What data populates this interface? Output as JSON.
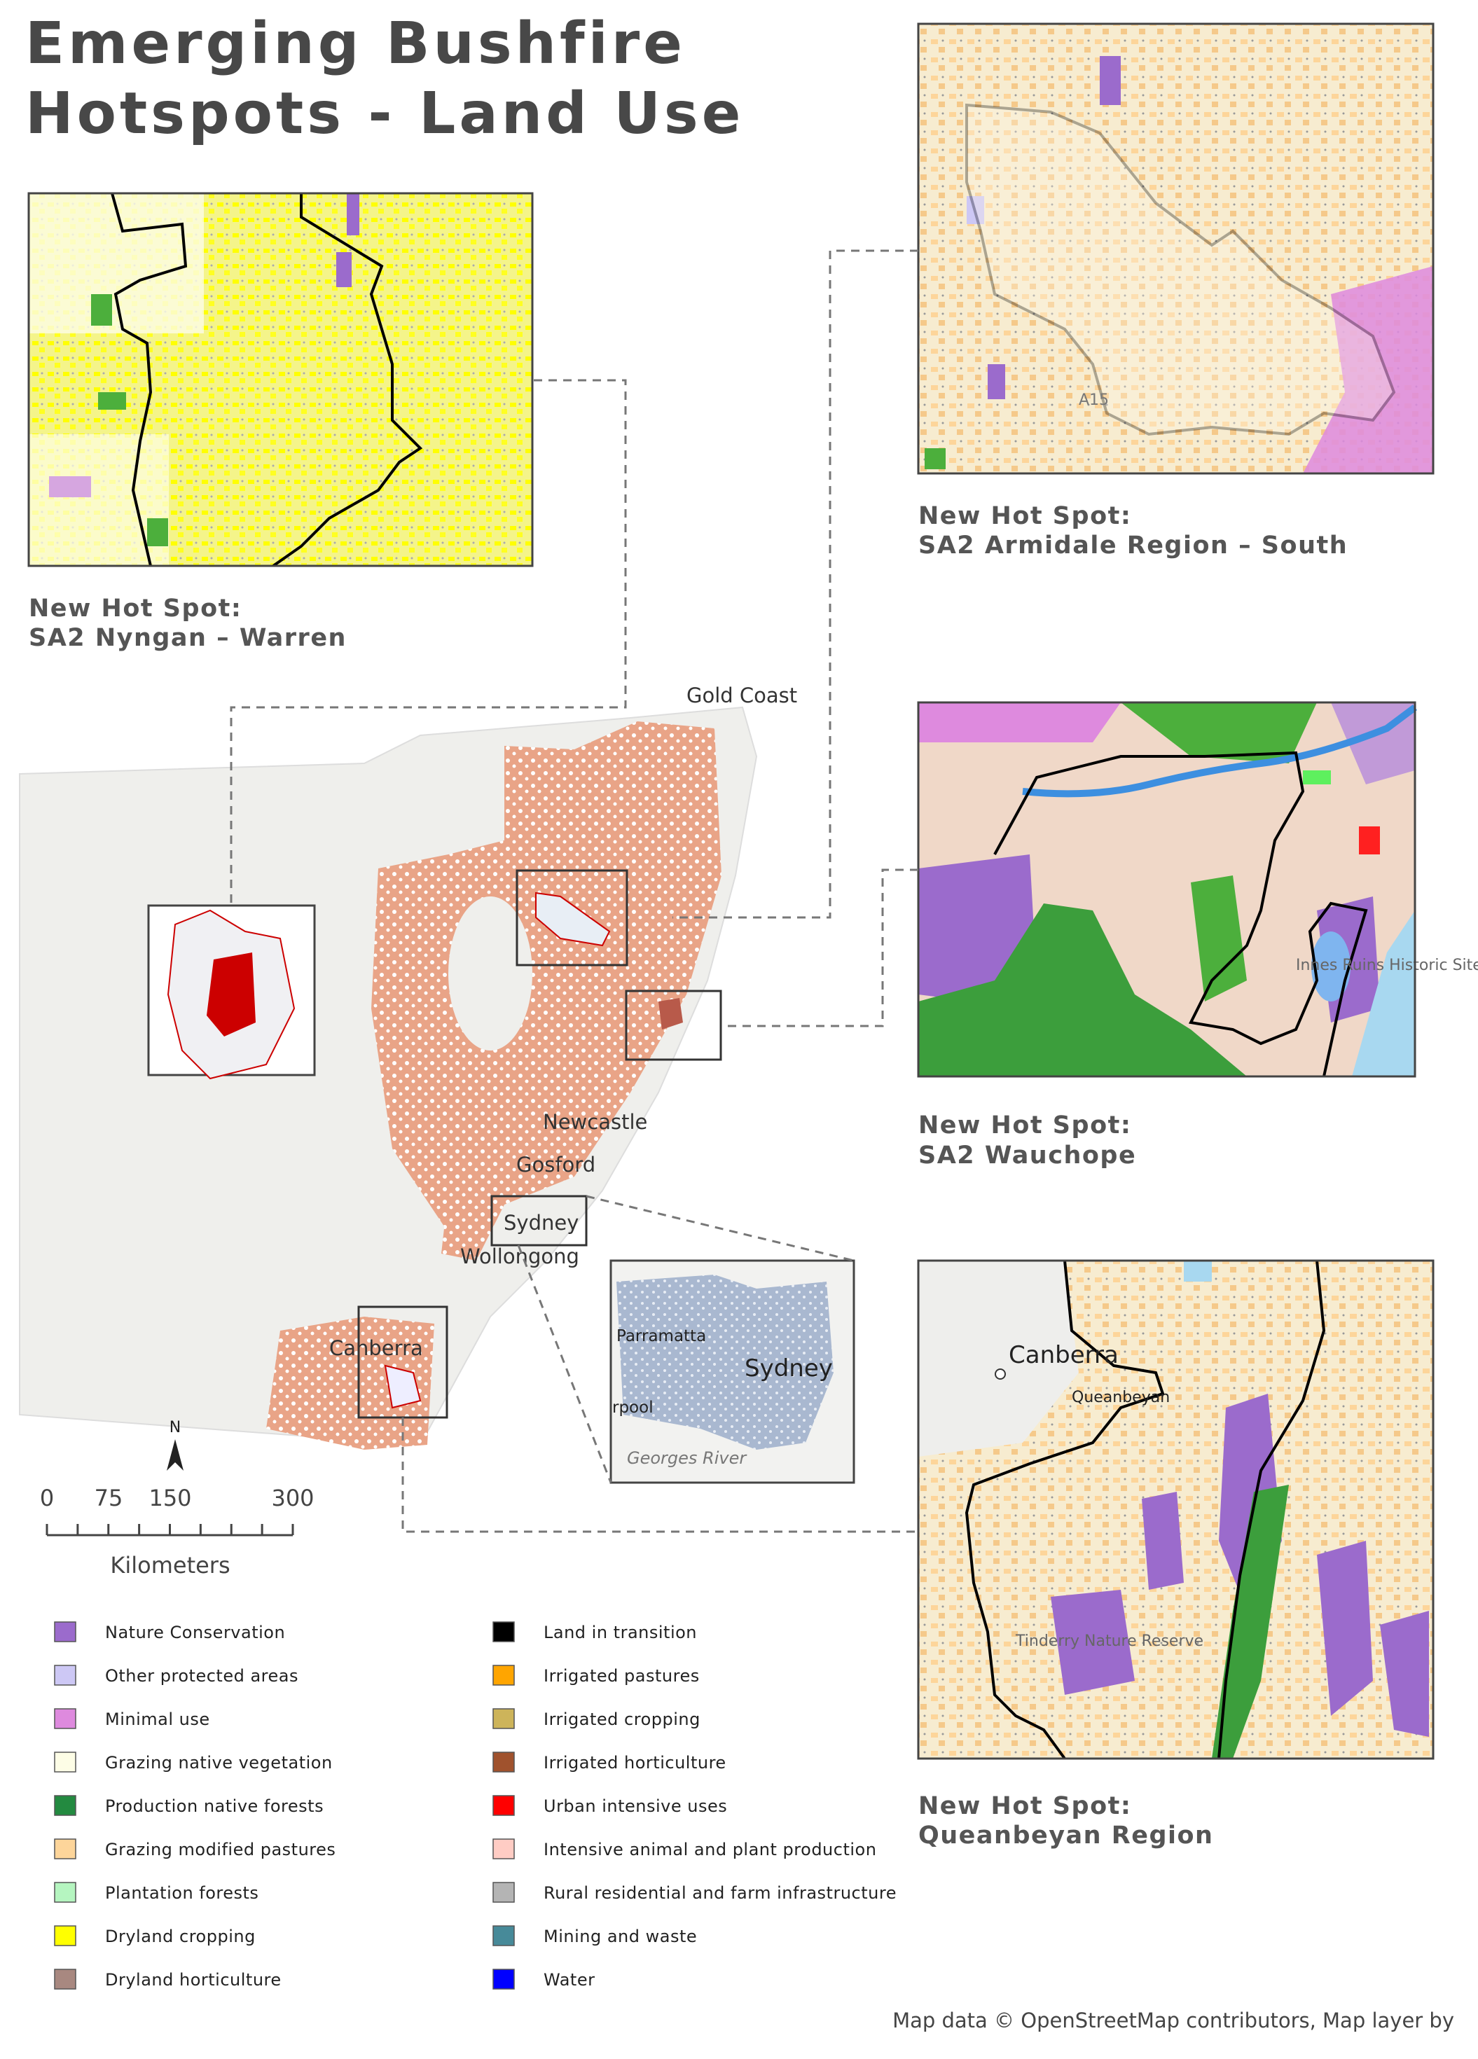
{
  "title": [
    "Emerging Bushfire",
    "Hotspots - Land Use"
  ],
  "panels": [
    {
      "heading": "New Hot Spot:",
      "name": "SA2 Nyngan – Warren"
    },
    {
      "heading": "New Hot Spot:",
      "name": "SA2 Armidale Region – South"
    },
    {
      "heading": "New Hot Spot:",
      "name": "SA2 Wauchope"
    },
    {
      "heading": "New Hot Spot:",
      "name": "Queanbeyan Region"
    }
  ],
  "main_map": {
    "places": [
      "Gold Coast",
      "Newcastle",
      "Gosford",
      "Sydney",
      "Wollongong",
      "Canberra"
    ],
    "inset_places": [
      "Parramatta",
      "Sydney",
      "rpool",
      "Georges River"
    ],
    "north": "N",
    "scale_ticks": [
      "0",
      "75",
      "150",
      "300"
    ],
    "scale_unit": "Kilometers"
  },
  "panel_places": {
    "armidale": [
      "A15"
    ],
    "wauchope": [
      "Innes Ruins Historic Site"
    ],
    "queanbeyan": [
      "Canberra",
      "Queanbeyan",
      "Tinderry Nature Reserve"
    ]
  },
  "legend": [
    {
      "label": "Nature Conservation",
      "color": "#9b6bcc"
    },
    {
      "label": "Other protected areas",
      "color": "#cdc8f5"
    },
    {
      "label": "Minimal use",
      "color": "#de8ade"
    },
    {
      "label": "Grazing native vegetation",
      "color": "#fdfde6"
    },
    {
      "label": "Production native forests",
      "color": "#238a40"
    },
    {
      "label": "Grazing modified pastures",
      "color": "#fdd59a"
    },
    {
      "label": "Plantation forests",
      "color": "#b5f5c0"
    },
    {
      "label": "Dryland cropping",
      "color": "#ffff00"
    },
    {
      "label": "Dryland horticulture",
      "color": "#a88880"
    },
    {
      "label": "Land in transition",
      "color": "#000000"
    },
    {
      "label": "Irrigated pastures",
      "color": "#ffa500"
    },
    {
      "label": "Irrigated cropping",
      "color": "#cdb45a"
    },
    {
      "label": "Irrigated horticulture",
      "color": "#a0522d"
    },
    {
      "label": "Urban intensive uses",
      "color": "#ff0000"
    },
    {
      "label": "Intensive animal and plant production",
      "color": "#ffccc4"
    },
    {
      "label": "Rural residential and farm infrastructure",
      "color": "#b4b4b4"
    },
    {
      "label": "Mining and waste",
      "color": "#478a99"
    },
    {
      "label": "Water",
      "color": "#0000ff"
    }
  ],
  "credit": "Map data © OpenStreetMap contributors, Map layer by"
}
